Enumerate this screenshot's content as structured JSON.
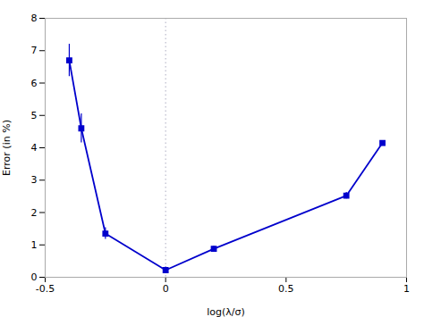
{
  "chart_data": {
    "type": "line",
    "x": [
      -0.4,
      -0.35,
      -0.25,
      0.0,
      0.2,
      0.75,
      0.9
    ],
    "values": [
      6.7,
      4.6,
      1.35,
      0.22,
      0.88,
      2.52,
      4.15
    ],
    "yerr": [
      0.5,
      0.45,
      0.18,
      0.1,
      0.08,
      0.1,
      0.0
    ],
    "color": "#0000CC",
    "marker": "square",
    "line_style": "solid",
    "xlabel": "log(λ/σ)",
    "ylabel": "Error (in %)",
    "xlim": [
      -0.5,
      1.0
    ],
    "ylim": [
      0,
      8
    ],
    "xticks": [
      -0.5,
      0,
      0.5,
      1
    ],
    "yticks": [
      0,
      1,
      2,
      3,
      4,
      5,
      6,
      7,
      8
    ],
    "grid": false,
    "vlines": [
      {
        "x": 0.0,
        "color": "#BBBBCC",
        "line_style": "dotted"
      }
    ]
  }
}
